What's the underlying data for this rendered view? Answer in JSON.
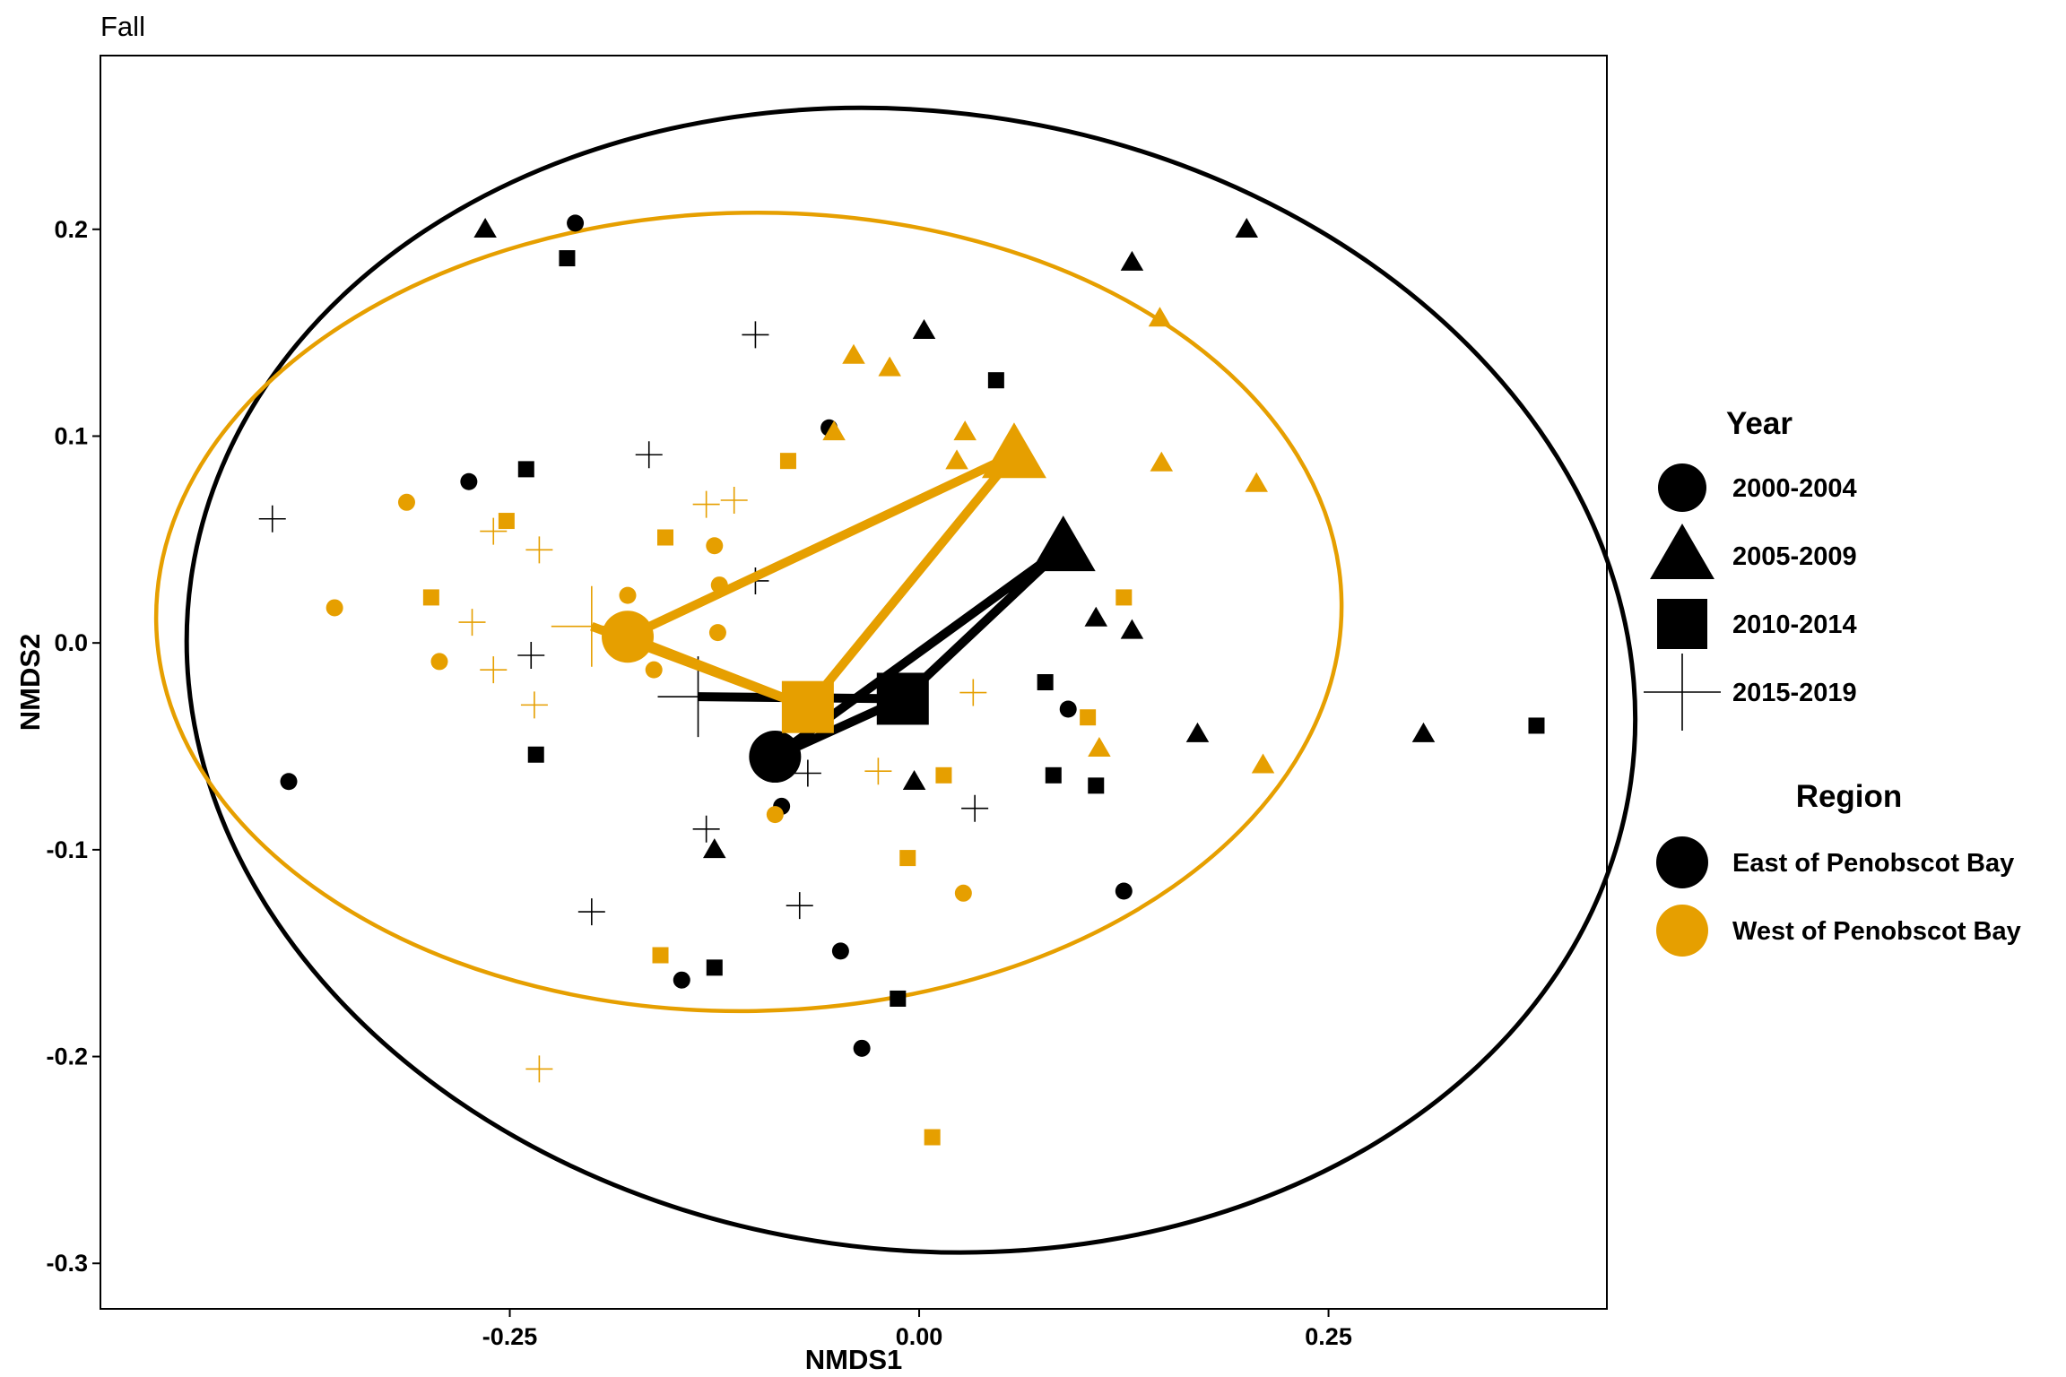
{
  "chart_data": {
    "type": "scatter",
    "title": "Fall",
    "xlabel": "NMDS1",
    "ylabel": "NMDS2",
    "xlim": [
      -0.5,
      0.42
    ],
    "ylim": [
      -0.322,
      0.284
    ],
    "x_ticks": [
      -0.25,
      0.0,
      0.25
    ],
    "x_tick_labels": [
      "-0.25",
      "0.00",
      "0.25"
    ],
    "y_ticks": [
      -0.3,
      -0.2,
      -0.1,
      0.0,
      0.1,
      0.2
    ],
    "y_tick_labels": [
      "-0.3",
      "-0.2",
      "-0.1",
      "0.0",
      "0.1",
      "0.2"
    ],
    "grid": false,
    "colors": {
      "east": "#000000",
      "west": "#E69F00"
    },
    "legend": {
      "position": "right",
      "year_title": "Year",
      "year_items": [
        {
          "label": "2000-2004",
          "shape": "circle"
        },
        {
          "label": "2005-2009",
          "shape": "triangle"
        },
        {
          "label": "2010-2014",
          "shape": "square"
        },
        {
          "label": "2015-2019",
          "shape": "plus"
        }
      ],
      "region_title": "Region",
      "region_items": [
        {
          "label": "East of Penobscot Bay",
          "color": "#000000"
        },
        {
          "label": "West of Penobscot Bay",
          "color": "#E69F00"
        }
      ]
    },
    "ellipses": [
      {
        "region": "East of Penobscot Bay",
        "cx": -0.005,
        "cy": -0.018,
        "rx": 0.444,
        "ry": 0.275,
        "rotation_deg": 8
      },
      {
        "region": "West of Penobscot Bay",
        "cx": -0.104,
        "cy": 0.015,
        "rx": 0.362,
        "ry": 0.193,
        "rotation_deg": -1
      }
    ],
    "centroids": [
      {
        "region": "East of Penobscot Bay",
        "points": [
          {
            "year": "2000-2004",
            "x": -0.088,
            "y": -0.055
          },
          {
            "year": "2005-2009",
            "x": 0.088,
            "y": 0.046
          },
          {
            "year": "2010-2014",
            "x": -0.01,
            "y": -0.027
          },
          {
            "year": "2015-2019",
            "x": -0.135,
            "y": -0.026
          }
        ]
      },
      {
        "region": "West of Penobscot Bay",
        "points": [
          {
            "year": "2000-2004",
            "x": -0.178,
            "y": 0.003
          },
          {
            "year": "2005-2009",
            "x": 0.058,
            "y": 0.091
          },
          {
            "year": "2010-2014",
            "x": -0.068,
            "y": -0.031
          },
          {
            "year": "2015-2019",
            "x": -0.2,
            "y": 0.008
          }
        ]
      }
    ],
    "series": [
      {
        "region": "East of Penobscot Bay",
        "points": [
          {
            "x": -0.265,
            "y": 0.2,
            "year": "2005-2009"
          },
          {
            "x": -0.21,
            "y": 0.203,
            "year": "2000-2004"
          },
          {
            "x": -0.215,
            "y": 0.186,
            "year": "2010-2014"
          },
          {
            "x": -0.275,
            "y": 0.078,
            "year": "2000-2004"
          },
          {
            "x": -0.24,
            "y": 0.084,
            "year": "2010-2014"
          },
          {
            "x": -0.395,
            "y": 0.06,
            "year": "2015-2019"
          },
          {
            "x": -0.385,
            "y": -0.067,
            "year": "2000-2004"
          },
          {
            "x": -0.237,
            "y": -0.006,
            "year": "2015-2019"
          },
          {
            "x": -0.234,
            "y": -0.054,
            "year": "2010-2014"
          },
          {
            "x": -0.1,
            "y": 0.149,
            "year": "2015-2019"
          },
          {
            "x": -0.165,
            "y": 0.091,
            "year": "2015-2019"
          },
          {
            "x": -0.055,
            "y": 0.104,
            "year": "2000-2004"
          },
          {
            "x": -0.1,
            "y": 0.03,
            "year": "2015-2019"
          },
          {
            "x": 0.003,
            "y": 0.151,
            "year": "2005-2009"
          },
          {
            "x": 0.047,
            "y": 0.127,
            "year": "2010-2014"
          },
          {
            "x": 0.13,
            "y": 0.184,
            "year": "2005-2009"
          },
          {
            "x": 0.2,
            "y": 0.2,
            "year": "2005-2009"
          },
          {
            "x": 0.108,
            "y": 0.012,
            "year": "2005-2009"
          },
          {
            "x": 0.13,
            "y": 0.006,
            "year": "2005-2009"
          },
          {
            "x": 0.077,
            "y": -0.019,
            "year": "2010-2014"
          },
          {
            "x": 0.091,
            "y": -0.032,
            "year": "2000-2004"
          },
          {
            "x": 0.17,
            "y": -0.044,
            "year": "2005-2009"
          },
          {
            "x": 0.308,
            "y": -0.044,
            "year": "2005-2009"
          },
          {
            "x": 0.377,
            "y": -0.04,
            "year": "2010-2014"
          },
          {
            "x": 0.082,
            "y": -0.064,
            "year": "2010-2014"
          },
          {
            "x": 0.108,
            "y": -0.069,
            "year": "2010-2014"
          },
          {
            "x": -0.003,
            "y": -0.067,
            "year": "2005-2009"
          },
          {
            "x": -0.068,
            "y": -0.063,
            "year": "2015-2019"
          },
          {
            "x": 0.034,
            "y": -0.08,
            "year": "2015-2019"
          },
          {
            "x": -0.084,
            "y": -0.079,
            "year": "2000-2004"
          },
          {
            "x": -0.13,
            "y": -0.09,
            "year": "2015-2019"
          },
          {
            "x": -0.125,
            "y": -0.1,
            "year": "2005-2009"
          },
          {
            "x": -0.073,
            "y": -0.127,
            "year": "2015-2019"
          },
          {
            "x": -0.2,
            "y": -0.13,
            "year": "2015-2019"
          },
          {
            "x": -0.125,
            "y": -0.157,
            "year": "2010-2014"
          },
          {
            "x": -0.145,
            "y": -0.163,
            "year": "2000-2004"
          },
          {
            "x": -0.048,
            "y": -0.149,
            "year": "2000-2004"
          },
          {
            "x": -0.013,
            "y": -0.172,
            "year": "2010-2014"
          },
          {
            "x": -0.035,
            "y": -0.196,
            "year": "2000-2004"
          },
          {
            "x": 0.125,
            "y": -0.12,
            "year": "2000-2004"
          }
        ]
      },
      {
        "region": "West of Penobscot Bay",
        "points": [
          {
            "x": -0.04,
            "y": 0.139,
            "year": "2005-2009"
          },
          {
            "x": -0.018,
            "y": 0.133,
            "year": "2005-2009"
          },
          {
            "x": -0.052,
            "y": 0.102,
            "year": "2005-2009"
          },
          {
            "x": 0.028,
            "y": 0.102,
            "year": "2005-2009"
          },
          {
            "x": 0.023,
            "y": 0.088,
            "year": "2005-2009"
          },
          {
            "x": 0.147,
            "y": 0.157,
            "year": "2005-2009"
          },
          {
            "x": 0.148,
            "y": 0.087,
            "year": "2005-2009"
          },
          {
            "x": 0.206,
            "y": 0.077,
            "year": "2005-2009"
          },
          {
            "x": -0.08,
            "y": 0.088,
            "year": "2010-2014"
          },
          {
            "x": -0.13,
            "y": 0.067,
            "year": "2015-2019"
          },
          {
            "x": -0.113,
            "y": 0.069,
            "year": "2015-2019"
          },
          {
            "x": -0.155,
            "y": 0.051,
            "year": "2010-2014"
          },
          {
            "x": -0.125,
            "y": 0.047,
            "year": "2000-2004"
          },
          {
            "x": -0.122,
            "y": 0.028,
            "year": "2000-2004"
          },
          {
            "x": -0.178,
            "y": 0.023,
            "year": "2000-2004"
          },
          {
            "x": -0.123,
            "y": 0.005,
            "year": "2000-2004"
          },
          {
            "x": -0.162,
            "y": -0.013,
            "year": "2000-2004"
          },
          {
            "x": -0.313,
            "y": 0.068,
            "year": "2000-2004"
          },
          {
            "x": -0.252,
            "y": 0.059,
            "year": "2010-2014"
          },
          {
            "x": -0.26,
            "y": 0.054,
            "year": "2015-2019"
          },
          {
            "x": -0.232,
            "y": 0.045,
            "year": "2015-2019"
          },
          {
            "x": -0.357,
            "y": 0.017,
            "year": "2000-2004"
          },
          {
            "x": -0.298,
            "y": 0.022,
            "year": "2010-2014"
          },
          {
            "x": -0.273,
            "y": 0.01,
            "year": "2015-2019"
          },
          {
            "x": -0.293,
            "y": -0.009,
            "year": "2000-2004"
          },
          {
            "x": -0.26,
            "y": -0.013,
            "year": "2015-2019"
          },
          {
            "x": -0.235,
            "y": -0.03,
            "year": "2015-2019"
          },
          {
            "x": 0.125,
            "y": 0.022,
            "year": "2010-2014"
          },
          {
            "x": 0.103,
            "y": -0.036,
            "year": "2010-2014"
          },
          {
            "x": 0.11,
            "y": -0.051,
            "year": "2005-2009"
          },
          {
            "x": 0.21,
            "y": -0.059,
            "year": "2005-2009"
          },
          {
            "x": 0.033,
            "y": -0.024,
            "year": "2015-2019"
          },
          {
            "x": 0.015,
            "y": -0.064,
            "year": "2010-2014"
          },
          {
            "x": -0.025,
            "y": -0.062,
            "year": "2015-2019"
          },
          {
            "x": -0.088,
            "y": -0.083,
            "year": "2000-2004"
          },
          {
            "x": -0.007,
            "y": -0.104,
            "year": "2010-2014"
          },
          {
            "x": 0.027,
            "y": -0.121,
            "year": "2000-2004"
          },
          {
            "x": -0.158,
            "y": -0.151,
            "year": "2010-2014"
          },
          {
            "x": -0.232,
            "y": -0.206,
            "year": "2015-2019"
          },
          {
            "x": 0.008,
            "y": -0.239,
            "year": "2010-2014"
          }
        ]
      }
    ]
  }
}
